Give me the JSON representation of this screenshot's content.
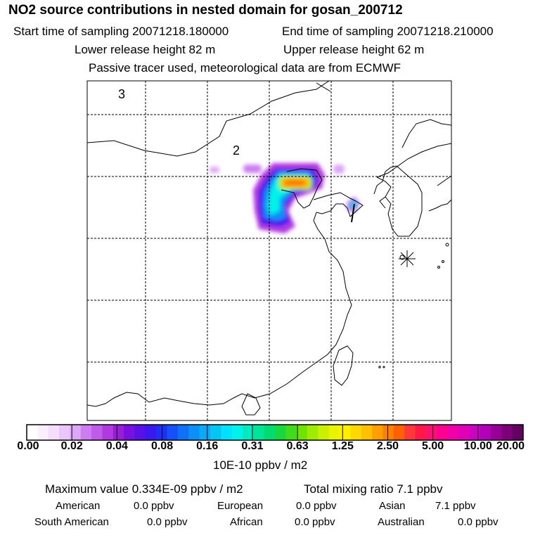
{
  "header": {
    "title": "NO2 source contributions in nested domain for gosan_200712",
    "start_label": "Start time of sampling 20071218.180000",
    "end_label": "End time of sampling 20071218.210000",
    "lower_label": "Lower release height   82 m",
    "upper_label": "Upper release height   62 m",
    "tracer_note": "Passive tracer used, meteorological data are from ECMWF"
  },
  "map": {
    "domain_labels": [
      "3",
      "2"
    ],
    "station_marker": "asterisk-icon"
  },
  "colorbar": {
    "ticks": [
      "0.00",
      "0.02",
      "0.04",
      "0.08",
      "0.16",
      "0.31",
      "0.63",
      "1.25",
      "2.50",
      "5.00",
      "10.00",
      "20.00"
    ],
    "colors": [
      "#ffffff",
      "#fbeefe",
      "#f5ddfc",
      "#eac6fa",
      "#dca8f6",
      "#cc7ef0",
      "#c05ae8",
      "#b03ae0",
      "#9a1cd8",
      "#7810e0",
      "#5812e8",
      "#3a18f0",
      "#1e30f8",
      "#1650f8",
      "#1070f8",
      "#0c90f8",
      "#0aaaf8",
      "#08c4f4",
      "#00e0ff",
      "#00f2e8",
      "#00ecc0",
      "#00e498",
      "#00dc70",
      "#18d840",
      "#40dc18",
      "#70e400",
      "#a0ec00",
      "#c8f000",
      "#e8f400",
      "#fff000",
      "#ffd800",
      "#ffc000",
      "#ffa000",
      "#ff8000",
      "#ff6000",
      "#ff3838",
      "#ff1848",
      "#ff1070",
      "#ff0090",
      "#f000a8",
      "#e000b8",
      "#cc00c0",
      "#b000b8",
      "#960096",
      "#7c0078",
      "#620062"
    ],
    "unit": "10E-10 ppbv / m2"
  },
  "summary": {
    "max_value": "Maximum value  0.334E-09 ppbv / m2",
    "total_mixing": "Total mixing ratio       7.1 ppbv"
  },
  "sources": [
    {
      "name": "American",
      "value": "0.0 ppbv"
    },
    {
      "name": "European",
      "value": "0.0 ppbv"
    },
    {
      "name": "Asian",
      "value": "7.1 ppbv"
    },
    {
      "name": "South American",
      "value": "0.0 ppbv"
    },
    {
      "name": "African",
      "value": "0.0 ppbv"
    },
    {
      "name": "Australian",
      "value": "0.0 ppbv"
    }
  ]
}
